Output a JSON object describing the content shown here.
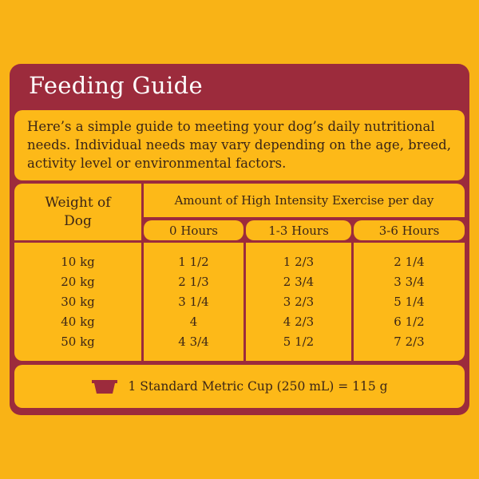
{
  "header": {
    "title": "Feeding Guide"
  },
  "intro": "Here’s a simple guide to meeting your dog’s daily nutritional needs. Individual needs may vary depending on the age, breed, activity level or environmental factors.",
  "table": {
    "corner_header": "Weight of Dog",
    "group_header": "Amount of High Intensity Exercise per day",
    "columns": [
      "0 Hours",
      "1-3 Hours",
      "3-6 Hours"
    ],
    "rows": [
      [
        "10 kg",
        "1 1/2",
        "1 2/3",
        "2 1/4"
      ],
      [
        "20 kg",
        "2 1/3",
        "2 3/4",
        "3 3/4"
      ],
      [
        "30 kg",
        "3 1/4",
        "3 2/3",
        "5 1/4"
      ],
      [
        "40 kg",
        "4",
        "4 2/3",
        "6 1/2"
      ],
      [
        "50 kg",
        "4 3/4",
        "5 1/2",
        "7 2/3"
      ]
    ]
  },
  "footer": {
    "note": "1 Standard Metric Cup (250 mL) = 115 g"
  }
}
